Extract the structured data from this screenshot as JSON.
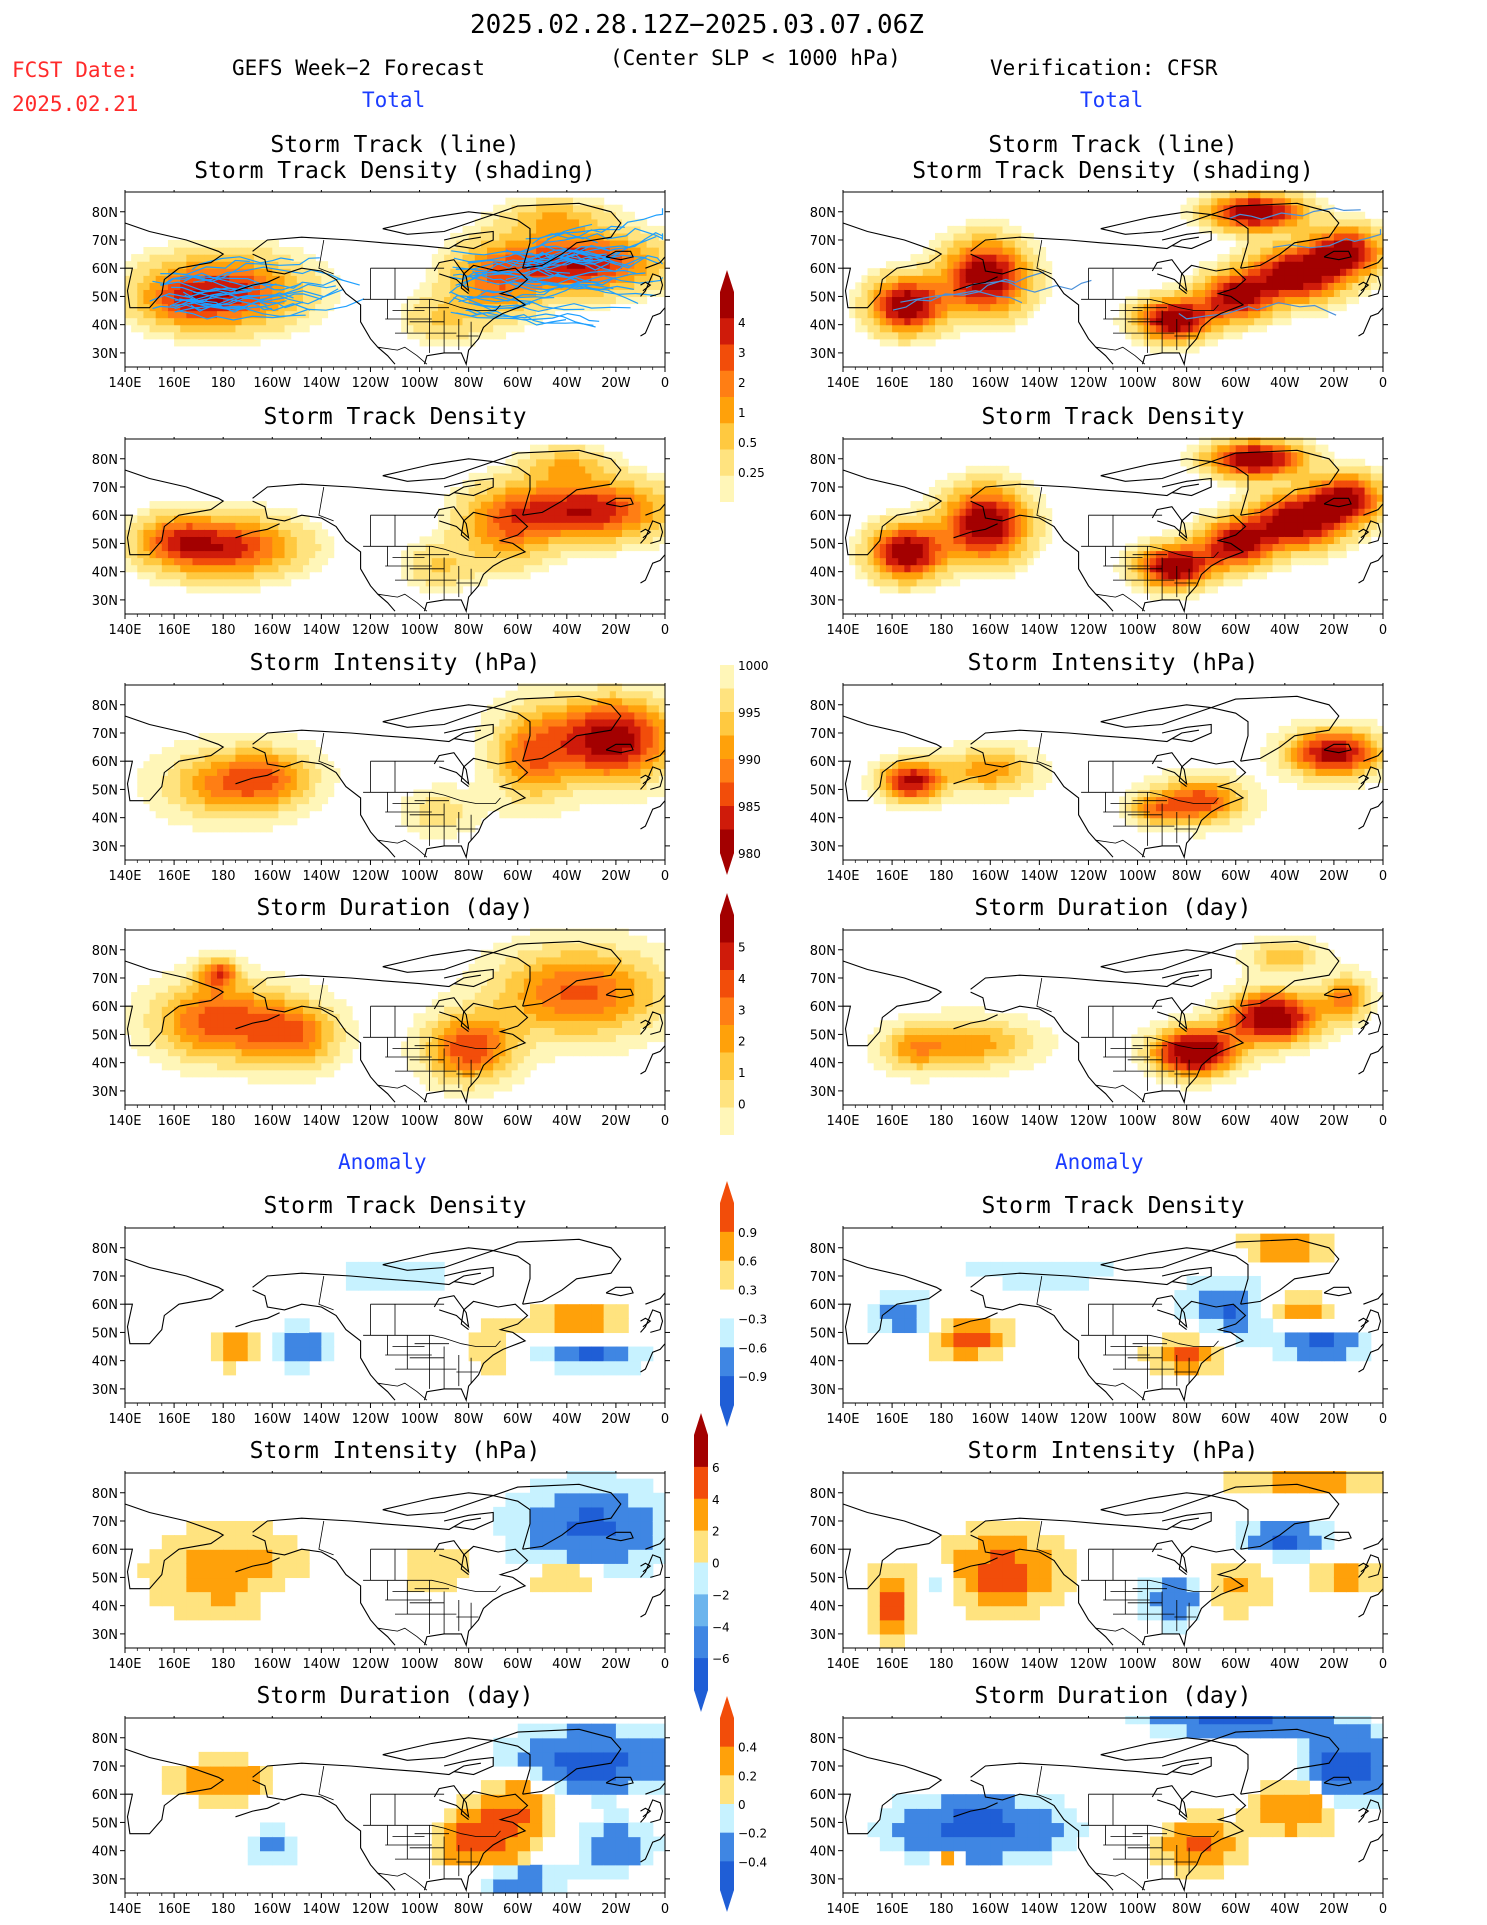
{
  "header": {
    "date_range": "2025.02.28.12Z−2025.03.07.06Z",
    "condition": "(Center SLP < 1000 hPa)",
    "fcst_label": "FCST Date:",
    "fcst_date": "2025.02.21",
    "left_model": "GEFS Week−2 Forecast",
    "right_model": "Verification: CFSR",
    "total_label": "Total",
    "anomaly_label": "Anomaly"
  },
  "titles": {
    "track_line": "Storm Track (line)",
    "track_density_shading": "Storm Track Density (shading)",
    "track_density": "Storm Track Density",
    "intensity": "Storm Intensity (hPa)",
    "duration": "Storm Duration (day)"
  },
  "axes": {
    "lat_labels": [
      "80N",
      "70N",
      "60N",
      "50N",
      "40N",
      "30N"
    ],
    "lon_labels": [
      "140E",
      "160E",
      "180",
      "160W",
      "140W",
      "120W",
      "100W",
      "80W",
      "60W",
      "40W",
      "20W",
      "0"
    ]
  },
  "colors": {
    "warm": [
      "#fff6b8",
      "#ffe37f",
      "#ffc940",
      "#ffa10a",
      "#ff7e14",
      "#f24d0a",
      "#cf1b0a",
      "#a30000"
    ],
    "cool": [
      "#c7f2ff",
      "#9ad8f4",
      "#6cb4ed",
      "#3f86e3",
      "#1f5ed6",
      "#0d3fb8"
    ],
    "track_forecast": "#1e9fff",
    "track_verif": "#4a90d9"
  },
  "chart_data": [
    {
      "type": "heatmap",
      "colorbar": {
        "levels": [
          "0.25",
          "0.5",
          "1",
          "2",
          "3",
          "4"
        ]
      }
    },
    {
      "type": "heatmap",
      "colorbar": {
        "levels": [
          "1000",
          "995",
          "990",
          "985",
          "980"
        ]
      }
    },
    {
      "type": "heatmap",
      "colorbar": {
        "levels": [
          "0",
          "1",
          "2",
          "3",
          "4",
          "5"
        ]
      }
    },
    {
      "type": "heatmap",
      "colorbar": {
        "levels": [
          "−0.9",
          "−0.6",
          "−0.3",
          "0.3",
          "0.6",
          "0.9"
        ]
      }
    },
    {
      "type": "heatmap",
      "colorbar": {
        "levels": [
          "−6",
          "−4",
          "−2",
          "0",
          "2",
          "4",
          "6"
        ]
      }
    },
    {
      "type": "heatmap",
      "colorbar": {
        "levels": [
          "−0.4",
          "−0.2",
          "0",
          "0.2",
          "0.4"
        ]
      }
    }
  ]
}
